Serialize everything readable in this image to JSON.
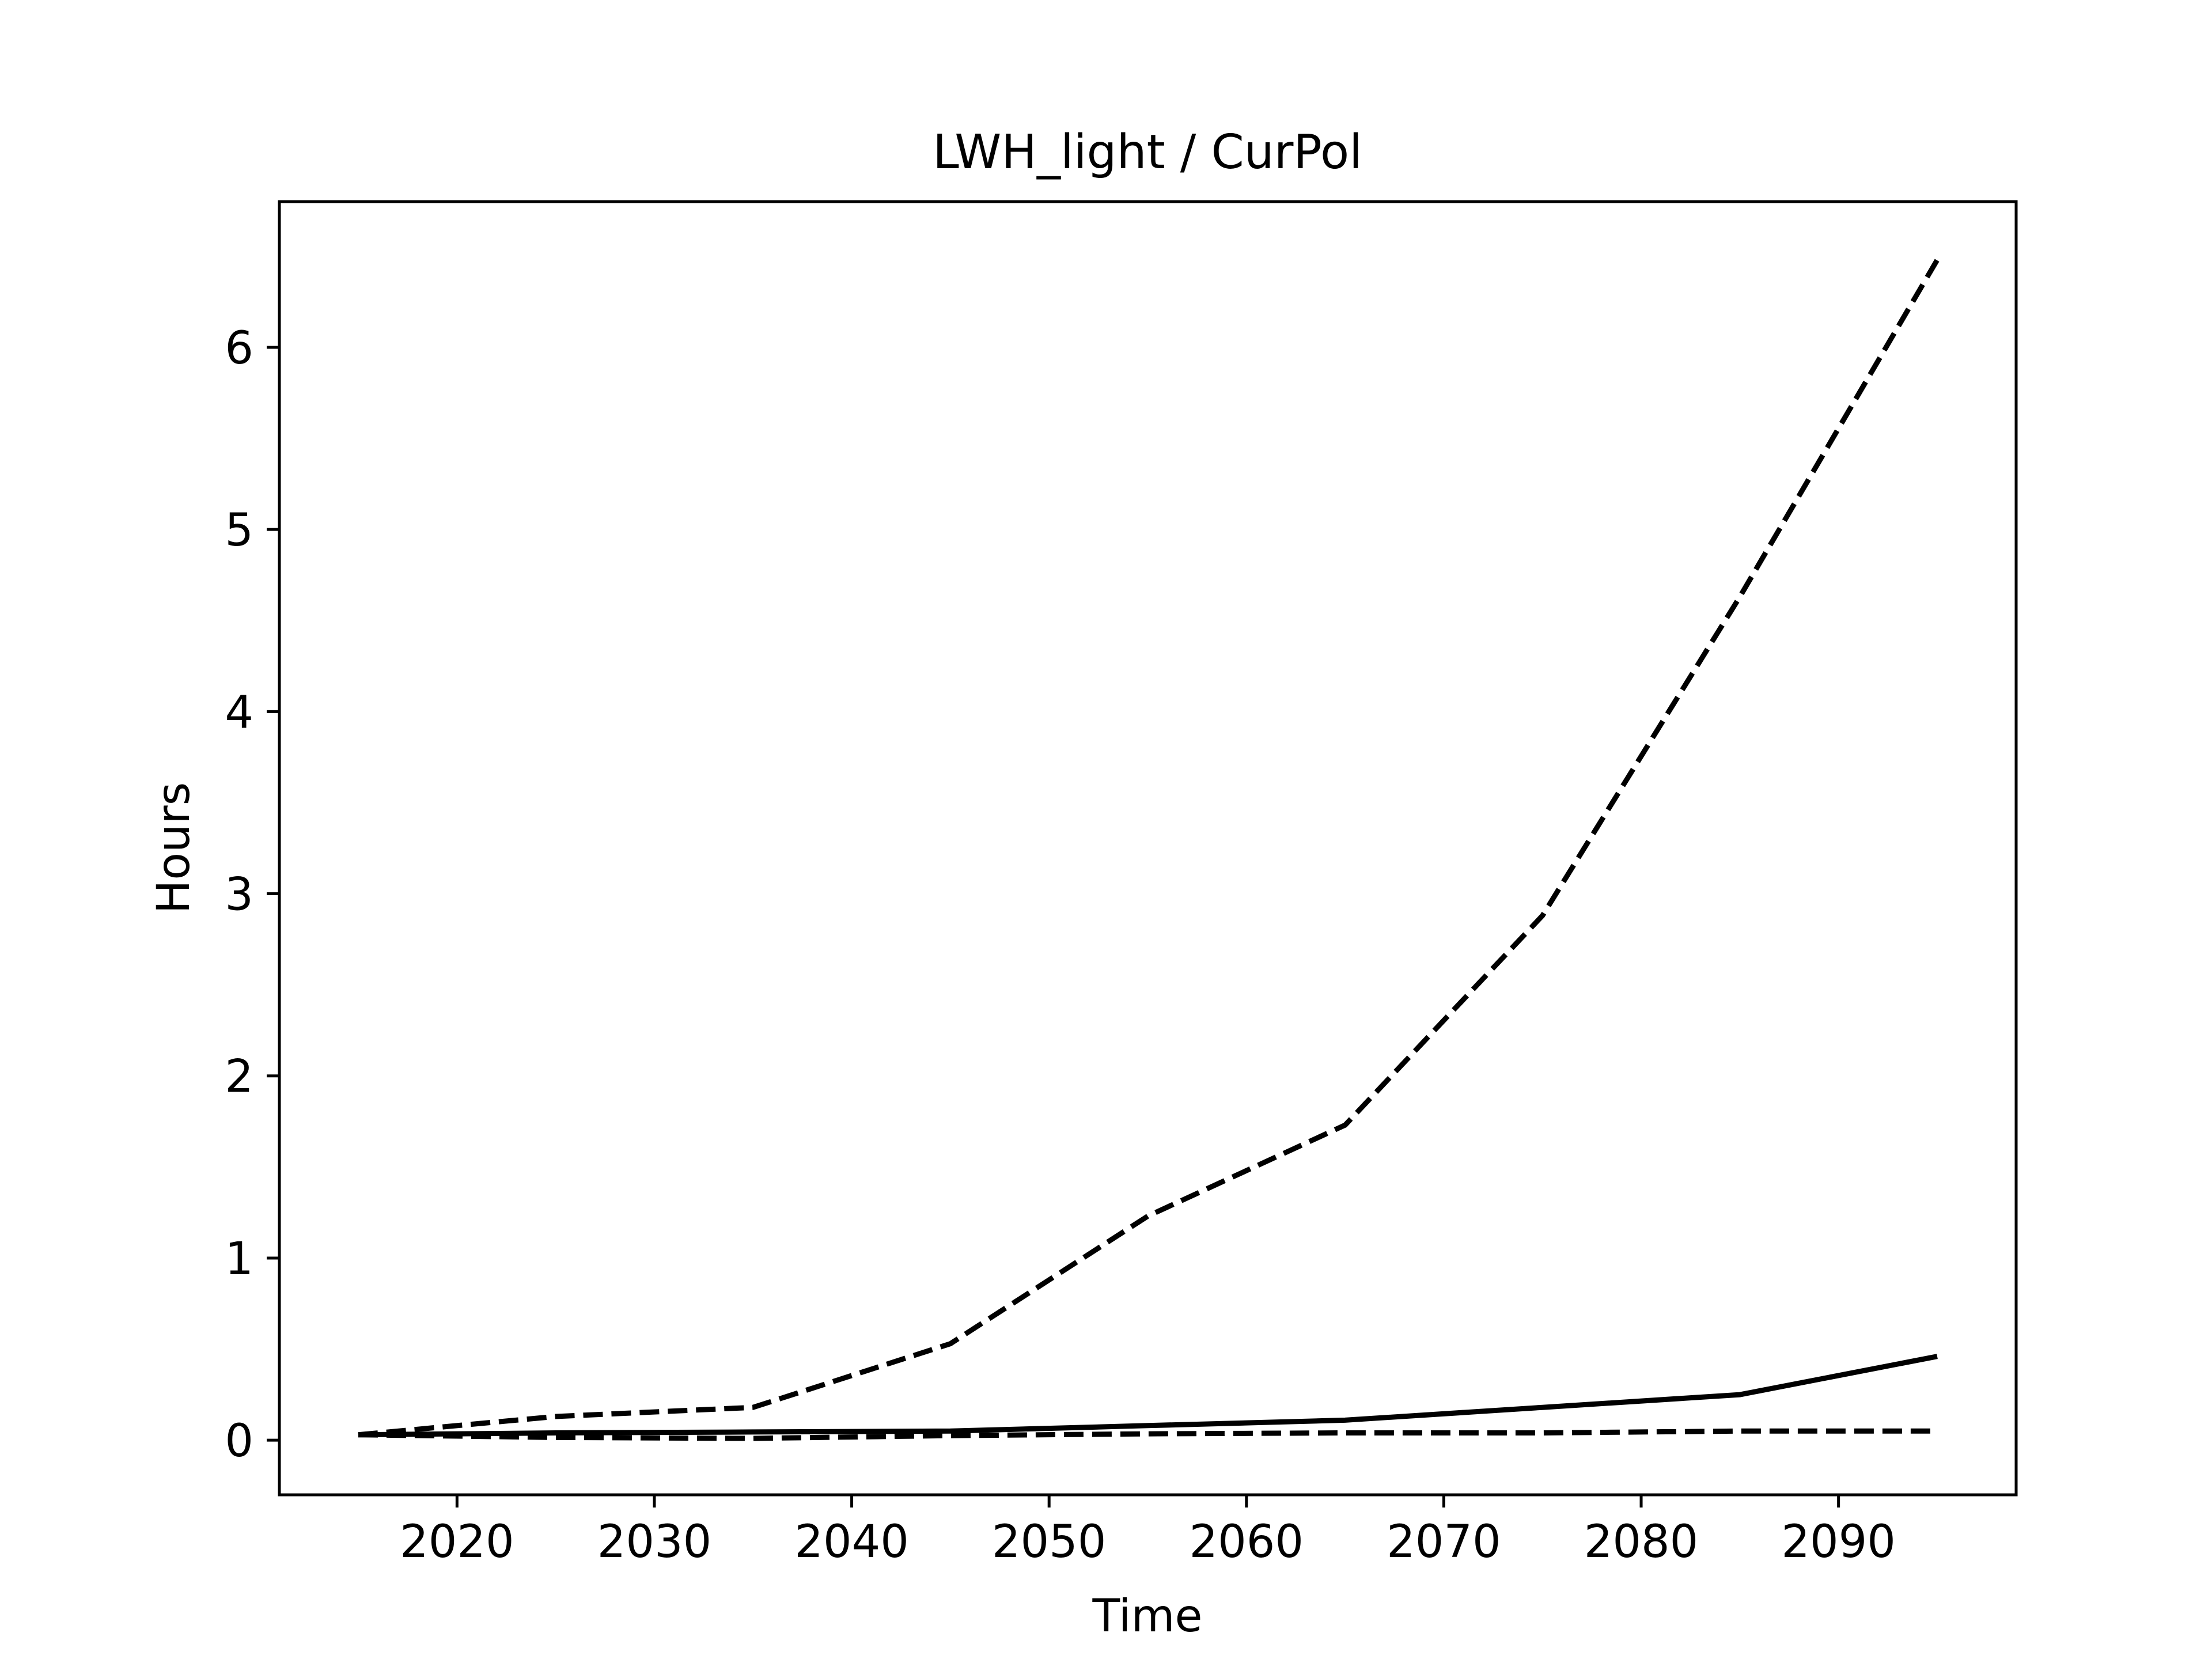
{
  "chart_data": {
    "type": "line",
    "title": "LWH_light / CurPol",
    "xlabel": "Time",
    "ylabel": "Hours",
    "xlim": [
      2011,
      2099
    ],
    "ylim": [
      -0.3,
      6.8
    ],
    "xticks": [
      2020,
      2030,
      2040,
      2050,
      2060,
      2070,
      2080,
      2090
    ],
    "yticks": [
      0,
      1,
      2,
      3,
      4,
      5,
      6
    ],
    "grid": false,
    "legend": "none",
    "colors": {
      "line": "#000000",
      "axes": "#000000",
      "background": "#ffffff"
    },
    "series": [
      {
        "style": "solid",
        "x": [
          2015,
          2025,
          2035,
          2045,
          2055,
          2065,
          2075,
          2085,
          2095
        ],
        "y": [
          0.03,
          0.04,
          0.045,
          0.05,
          0.08,
          0.11,
          0.18,
          0.25,
          0.46
        ]
      },
      {
        "style": "dashed",
        "x": [
          2015,
          2025,
          2035,
          2045,
          2055,
          2065,
          2075,
          2085,
          2095
        ],
        "y": [
          0.03,
          0.13,
          0.18,
          0.53,
          1.23,
          1.73,
          2.88,
          4.63,
          6.48
        ]
      },
      {
        "style": "dashed",
        "x": [
          2015,
          2025,
          2035,
          2045,
          2055,
          2065,
          2075,
          2085,
          2095
        ],
        "y": [
          0.03,
          0.015,
          0.01,
          0.025,
          0.035,
          0.04,
          0.04,
          0.05,
          0.05
        ]
      }
    ]
  }
}
